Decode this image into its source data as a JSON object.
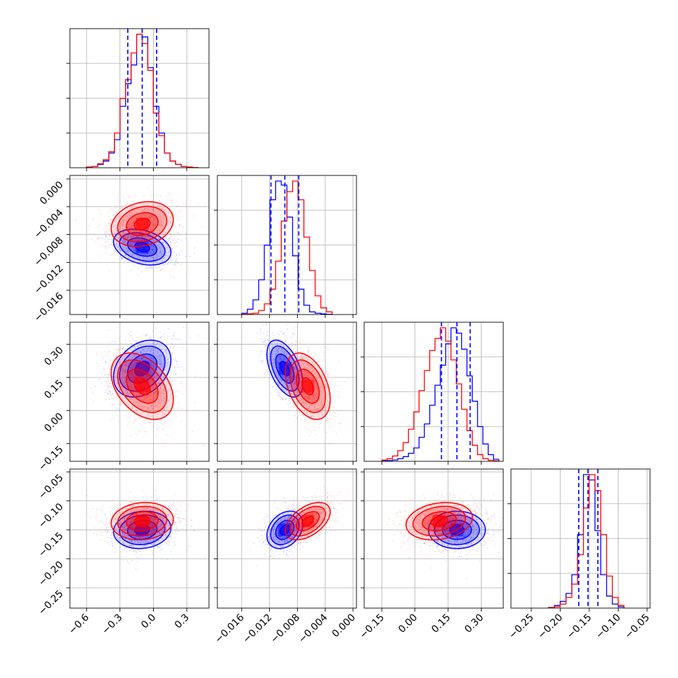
{
  "chart_data": {
    "type": "corner",
    "title": "",
    "parameters": [
      {
        "name": "",
        "range": [
          -0.75,
          0.5
        ],
        "ticks": [
          -0.6,
          -0.3,
          0.0,
          0.3
        ],
        "tick_labels": [
          "−0.6",
          "−0.3",
          "0.0",
          "0.3"
        ]
      },
      {
        "name": "",
        "range": [
          -0.0195,
          0.0005
        ],
        "ticks": [
          -0.016,
          -0.012,
          -0.008,
          -0.004,
          0.0
        ],
        "tick_labels": [
          "−0.016",
          "−0.012",
          "−0.008",
          "−0.004",
          "0.000"
        ]
      },
      {
        "name": "",
        "range": [
          -0.23,
          0.4
        ],
        "ticks": [
          -0.15,
          0.0,
          0.15,
          0.3
        ],
        "tick_labels": [
          "−0.15",
          "0.00",
          "0.15",
          "0.30"
        ]
      },
      {
        "name": "",
        "range": [
          -0.285,
          -0.045
        ],
        "ticks": [
          -0.25,
          -0.2,
          -0.15,
          -0.1,
          -0.05
        ],
        "tick_labels": [
          "−0.25",
          "−0.20",
          "−0.15",
          "−0.10",
          "−0.05"
        ]
      }
    ],
    "series": [
      {
        "name": "",
        "color": "#0000ff",
        "means": [
          -0.1,
          -0.0098,
          0.19,
          -0.15
        ],
        "stds": [
          0.12,
          0.0012,
          0.06,
          0.015
        ],
        "correlations": {
          "0-1": -0.3,
          "0-2": 0.3,
          "0-3": 0.1,
          "1-2": -0.5,
          "1-3": 0.3,
          "2-3": 0.0
        },
        "quantiles": [
          [
            -0.23,
            -0.1,
            0.03
          ],
          [
            -0.0118,
            -0.0098,
            -0.0078
          ],
          [
            0.12,
            0.19,
            0.25
          ],
          [
            -0.168,
            -0.152,
            -0.135
          ]
        ],
        "histograms": [
          {
            "edges_range": [
              -0.6,
              0.4
            ],
            "counts": [
              0.5,
              1,
              2.5,
              5,
              11,
              21,
              46,
              63,
              77,
              100,
              98,
              75,
              46,
              26,
              11,
              5,
              2.5,
              1,
              0.5,
              0.2
            ]
          },
          {
            "edges_range": [
              -0.016,
              -0.003
            ],
            "counts": [
              1,
              4,
              11,
              26,
              52,
              86,
              100,
              97,
              73,
              44,
              19,
              7,
              2,
              1,
              0.5,
              0.2
            ]
          },
          {
            "edges_range": [
              -0.15,
              0.38
            ],
            "counts": [
              0.3,
              0.6,
              1,
              2,
              3.5,
              6,
              10,
              18,
              28,
              42,
              57,
              72,
              88,
              100,
              96,
              84,
              64,
              45,
              26,
              13,
              5,
              1.5
            ]
          },
          {
            "edges_range": [
              -0.22,
              -0.09
            ],
            "counts": [
              0.5,
              2,
              5,
              11,
              25,
              55,
              100,
              96,
              58,
              25,
              9,
              3,
              1
            ]
          }
        ]
      },
      {
        "name": "",
        "color": "#ff0000",
        "means": [
          -0.1,
          -0.0065,
          0.11,
          -0.135
        ],
        "stds": [
          0.13,
          0.0015,
          0.07,
          0.015
        ],
        "correlations": {
          "0-1": 0.2,
          "0-2": -0.4,
          "0-3": 0.1,
          "1-2": -0.4,
          "1-3": 0.5,
          "2-3": 0.2
        },
        "histograms": [
          {
            "edges_range": [
              -0.6,
              0.4
            ],
            "counts": [
              0.5,
              1,
              3,
              6,
              12,
              26,
              52,
              66,
              86,
              100,
              93,
              73,
              41,
              24,
              11,
              5,
              2.5,
              1,
              0.5,
              0.2
            ]
          },
          {
            "edges_range": [
              -0.016,
              -0.003
            ],
            "counts": [
              0.2,
              0.5,
              1,
              3,
              8,
              19,
              40,
              70,
              92,
              100,
              86,
              58,
              33,
              14,
              5,
              2
            ]
          },
          {
            "edges_range": [
              -0.15,
              0.38
            ],
            "counts": [
              1,
              2,
              4,
              8,
              14,
              24,
              37,
              53,
              68,
              83,
              92,
              100,
              90,
              76,
              58,
              39,
              23,
              12,
              5,
              2,
              0.8,
              0.3
            ]
          },
          {
            "edges_range": [
              -0.22,
              -0.09
            ],
            "counts": [
              0.3,
              1,
              3,
              8,
              18,
              40,
              75,
              100,
              88,
              55,
              24,
              8,
              2
            ]
          }
        ]
      }
    ],
    "grid": true,
    "legend": "none"
  }
}
